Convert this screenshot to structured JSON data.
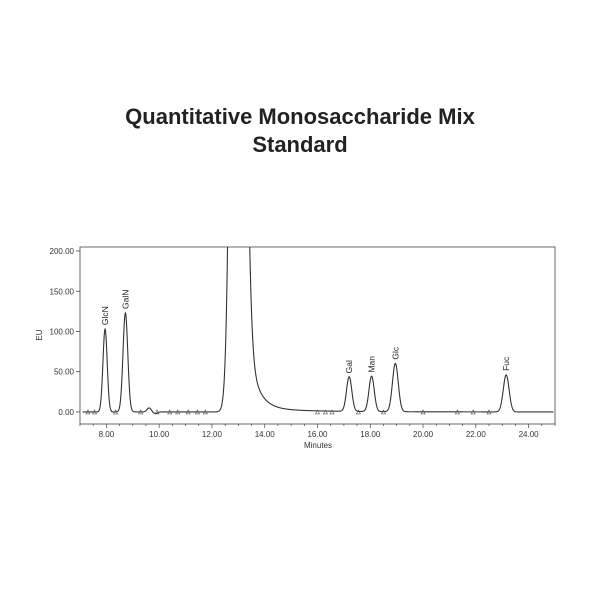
{
  "title_line1": "Quantitative Monosaccharide Mix",
  "title_line2": "Standard",
  "chart_data": {
    "type": "line",
    "xlabel": "Minutes",
    "ylabel": "EU",
    "xlim": [
      7.0,
      25.0
    ],
    "ylim": [
      -15,
      205
    ],
    "x_ticks": [
      8,
      10,
      12,
      14,
      16,
      18,
      20,
      22,
      24
    ],
    "x_tick_labels": [
      "8.00",
      "10.00",
      "12.00",
      "14.00",
      "16.00",
      "18.00",
      "20.00",
      "22.00",
      "24.00"
    ],
    "y_ticks": [
      0,
      50,
      100,
      150,
      200
    ],
    "y_tick_labels": [
      "0.00",
      "50.00",
      "100.00",
      "150.00",
      "200.00"
    ],
    "grid": false,
    "series": [
      {
        "peaks": [
          {
            "label": "GlcN",
            "x": 7.95,
            "y": 103
          },
          {
            "label": "GalN",
            "x": 8.72,
            "y": 123
          },
          {
            "label": "",
            "x": 9.62,
            "y": 5
          },
          {
            "label": "",
            "x": 12.95,
            "y": 205
          },
          {
            "label": "Gal",
            "x": 17.2,
            "y": 43
          },
          {
            "label": "Man",
            "x": 18.05,
            "y": 44
          },
          {
            "label": "Glc",
            "x": 18.95,
            "y": 60
          },
          {
            "label": "Fuc",
            "x": 23.15,
            "y": 46
          }
        ]
      }
    ]
  }
}
